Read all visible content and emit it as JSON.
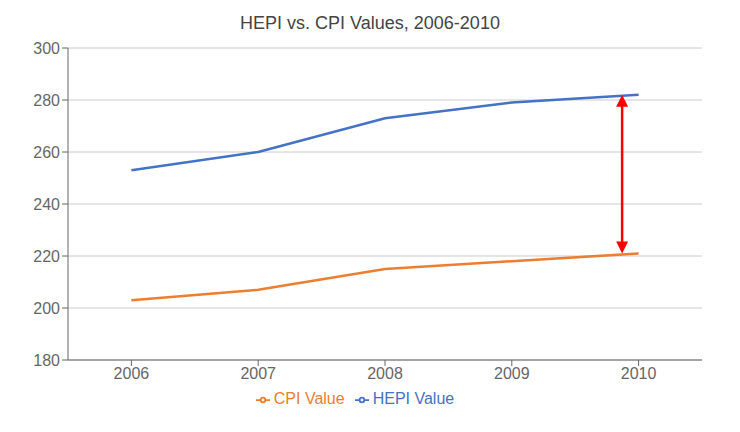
{
  "chart_data": {
    "type": "line",
    "title": "HEPI vs. CPI Values, 2006-2010",
    "x": [
      2006,
      2007,
      2008,
      2009,
      2010
    ],
    "series": [
      {
        "name": "HEPI Value",
        "color": "#4472C4",
        "values": [
          253,
          260,
          273,
          279,
          282
        ]
      },
      {
        "name": "CPI Value",
        "color": "#ED7D31",
        "values": [
          203,
          207,
          215,
          218,
          221
        ]
      }
    ],
    "xlim": [
      2005.5,
      2010.5
    ],
    "xticks": [
      2006,
      2007,
      2008,
      2009,
      2010
    ],
    "ylim": [
      180,
      300
    ],
    "yticks": [
      180,
      200,
      220,
      240,
      260,
      280,
      300
    ],
    "grid": true,
    "legend": "bottom",
    "annotations": [
      {
        "type": "arrow",
        "x": 2009.87,
        "y_start": 282,
        "y_end": 221,
        "color": "#FF0000"
      }
    ]
  }
}
